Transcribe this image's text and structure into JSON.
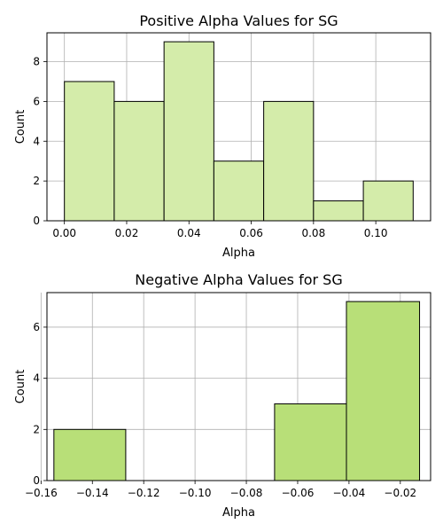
{
  "chart_data": [
    {
      "type": "bar",
      "title": "Positive Alpha Values for SG",
      "xlabel": "Alpha",
      "ylabel": "Count",
      "bar_color": "#d4ecaa",
      "edge_color": "#000000",
      "grid": true,
      "xlim": [
        -0.0056,
        0.1176
      ],
      "ylim": [
        0,
        9.45
      ],
      "xticks": [
        0.0,
        0.02,
        0.04,
        0.06,
        0.08,
        0.1
      ],
      "xtick_labels": [
        "0.00",
        "0.02",
        "0.04",
        "0.06",
        "0.08",
        "0.10"
      ],
      "yticks": [
        0,
        2,
        4,
        6,
        8
      ],
      "ytick_labels": [
        "0",
        "2",
        "4",
        "6",
        "8"
      ],
      "bins": [
        {
          "x0": 0.0,
          "x1": 0.016,
          "count": 7
        },
        {
          "x0": 0.016,
          "x1": 0.032,
          "count": 6
        },
        {
          "x0": 0.032,
          "x1": 0.048,
          "count": 9
        },
        {
          "x0": 0.048,
          "x1": 0.064,
          "count": 3
        },
        {
          "x0": 0.064,
          "x1": 0.08,
          "count": 6
        },
        {
          "x0": 0.08,
          "x1": 0.096,
          "count": 1
        },
        {
          "x0": 0.096,
          "x1": 0.112,
          "count": 2
        }
      ]
    },
    {
      "type": "bar",
      "title": "Negative Alpha Values for SG",
      "xlabel": "Alpha",
      "ylabel": "Count",
      "bar_color": "#b8df78",
      "edge_color": "#000000",
      "grid": true,
      "xlim": [
        -0.1577,
        -0.0082
      ],
      "ylim": [
        0,
        7.35
      ],
      "xticks": [
        -0.16,
        -0.14,
        -0.12,
        -0.1,
        -0.08,
        -0.06,
        -0.04,
        -0.02
      ],
      "xtick_labels": [
        "−0.16",
        "−0.14",
        "−0.12",
        "−0.10",
        "−0.08",
        "−0.06",
        "−0.04",
        "−0.02"
      ],
      "yticks": [
        0,
        2,
        4,
        6
      ],
      "ytick_labels": [
        "0",
        "2",
        "4",
        "6"
      ],
      "bins": [
        {
          "x0": -0.155,
          "x1": -0.127,
          "count": 2
        },
        {
          "x0": -0.127,
          "x1": -0.098,
          "count": 0
        },
        {
          "x0": -0.098,
          "x1": -0.069,
          "count": 0
        },
        {
          "x0": -0.069,
          "x1": -0.041,
          "count": 3
        },
        {
          "x0": -0.041,
          "x1": -0.0125,
          "count": 7
        }
      ]
    }
  ]
}
